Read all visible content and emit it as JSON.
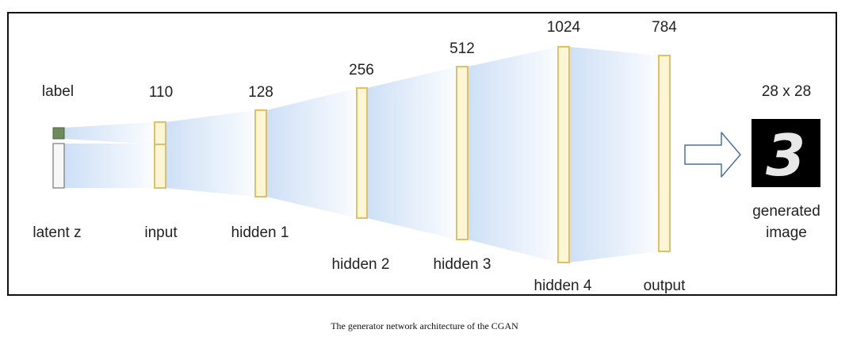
{
  "diagram": {
    "latent_label": "latent z",
    "label_label": "label",
    "layers": [
      {
        "name": "input",
        "size": "110"
      },
      {
        "name": "hidden 1",
        "size": "128"
      },
      {
        "name": "hidden 2",
        "size": "256"
      },
      {
        "name": "hidden 3",
        "size": "512"
      },
      {
        "name": "hidden 4",
        "size": "1024"
      },
      {
        "name": "output",
        "size": "784"
      }
    ],
    "result": {
      "size": "28 x 28",
      "name_line1": "generated",
      "name_line2": "image",
      "digit_glyph": "3"
    },
    "colors": {
      "layer_fill": "#fdf6d6",
      "layer_stroke": "#e0c060",
      "label_fill": "#6d8c5a",
      "funnel": "#c8dcf5",
      "arrow_stroke": "#4b6fa3"
    }
  },
  "caption": "The generator network architecture of the CGAN"
}
